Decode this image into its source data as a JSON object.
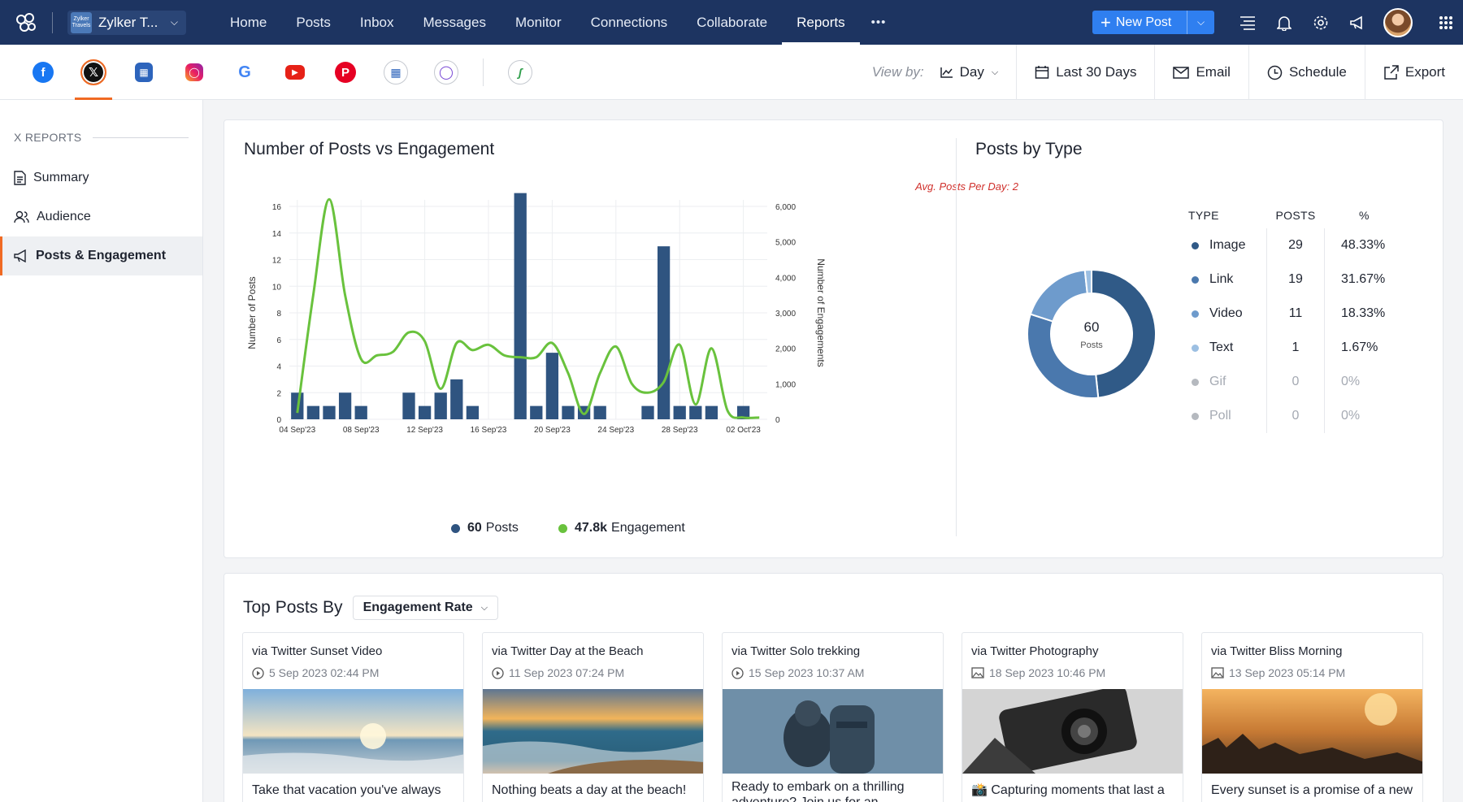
{
  "nav": {
    "brand": "Zylker T...",
    "brand_logo_text": "Zylker Travels",
    "links": [
      "Home",
      "Posts",
      "Inbox",
      "Messages",
      "Monitor",
      "Connections",
      "Collaborate",
      "Reports"
    ],
    "more": "•••",
    "new_post": "New Post"
  },
  "toolbar": {
    "view_by": "View by:",
    "day": "Day",
    "range": "Last 30 Days",
    "email": "Email",
    "schedule": "Schedule",
    "export": "Export"
  },
  "sidebar": {
    "heading": "X REPORTS",
    "items": [
      "Summary",
      "Audience",
      "Posts & Engagement"
    ]
  },
  "engagement_card": {
    "title": "Number of Posts vs Engagement",
    "avg": "Avg. Posts Per Day: 2",
    "legend_posts_value": "60",
    "legend_posts_label": "Posts",
    "legend_eng_value": "47.8k",
    "legend_eng_label": "Engagement"
  },
  "type_card": {
    "title": "Posts by Type",
    "center_value": "60",
    "center_label": "Posts",
    "headers": [
      "TYPE",
      "POSTS",
      "%"
    ],
    "rows": [
      {
        "type": "Image",
        "posts": "29",
        "pct": "48.33%",
        "color": "#305a87"
      },
      {
        "type": "Link",
        "posts": "19",
        "pct": "31.67%",
        "color": "#4a78ad"
      },
      {
        "type": "Video",
        "posts": "11",
        "pct": "18.33%",
        "color": "#6e9bcc"
      },
      {
        "type": "Text",
        "posts": "1",
        "pct": "1.67%",
        "color": "#9cbfe2"
      },
      {
        "type": "Gif",
        "posts": "0",
        "pct": "0%",
        "color": "#b5b9bf"
      },
      {
        "type": "Poll",
        "posts": "0",
        "pct": "0%",
        "color": "#b5b9bf"
      }
    ]
  },
  "top_posts": {
    "title": "Top Posts By",
    "sort": "Engagement Rate",
    "posts": [
      {
        "via": "via Twitter Sunset Video",
        "date": "5 Sep 2023 02:44 PM",
        "text": "Take that vacation you've always",
        "kind": "video"
      },
      {
        "via": "via Twitter Day at the Beach",
        "date": "11 Sep 2023 07:24 PM",
        "text": "Nothing beats a day at the beach!",
        "kind": "video"
      },
      {
        "via": "via Twitter Solo trekking",
        "date": "15 Sep 2023 10:37 AM",
        "text": "Ready to embark on a thrilling adventure? Join us for an",
        "kind": "video"
      },
      {
        "via": "via Twitter Photography",
        "date": "18 Sep 2023 10:46 PM",
        "text": "📸 Capturing moments that last a",
        "kind": "image"
      },
      {
        "via": "via Twitter Bliss Morning",
        "date": "13 Sep 2023 05:14 PM",
        "text": "Every sunset is a promise of a new",
        "kind": "image"
      }
    ]
  },
  "chart_data": {
    "type": "bar",
    "categories": [
      "04 Sep'23",
      "05 Sep'23",
      "06 Sep'23",
      "07 Sep'23",
      "08 Sep'23",
      "09 Sep'23",
      "10 Sep'23",
      "11 Sep'23",
      "12 Sep'23",
      "13 Sep'23",
      "14 Sep'23",
      "15 Sep'23",
      "16 Sep'23",
      "17 Sep'23",
      "18 Sep'23",
      "19 Sep'23",
      "20 Sep'23",
      "21 Sep'23",
      "22 Sep'23",
      "23 Sep'23",
      "24 Sep'23",
      "25 Sep'23",
      "26 Sep'23",
      "27 Sep'23",
      "28 Sep'23",
      "29 Sep'23",
      "30 Sep'23",
      "01 Oct'23",
      "02 Oct'23",
      "03 Oct'23"
    ],
    "x_tick_labels": [
      "04 Sep'23",
      "08 Sep'23",
      "12 Sep'23",
      "16 Sep'23",
      "20 Sep'23",
      "24 Sep'23",
      "28 Sep'23",
      "02 Oct'23"
    ],
    "series": [
      {
        "name": "Posts",
        "type": "bar",
        "axis": "left",
        "color": "#2f5480",
        "values": [
          2,
          1,
          1,
          2,
          1,
          0,
          0,
          2,
          1,
          2,
          3,
          1,
          0,
          0,
          17,
          1,
          5,
          1,
          1,
          1,
          0,
          0,
          1,
          13,
          1,
          1,
          1,
          0,
          1,
          0
        ]
      },
      {
        "name": "Engagement",
        "type": "line",
        "axis": "right",
        "color": "#69c23d",
        "values": [
          180,
          3500,
          6200,
          3500,
          1700,
          1800,
          1900,
          2450,
          2200,
          860,
          2150,
          1950,
          2100,
          1800,
          1750,
          1750,
          2150,
          1300,
          150,
          1300,
          2050,
          1000,
          750,
          1050,
          2100,
          420,
          2000,
          250,
          50,
          50
        ]
      }
    ],
    "ylabel": "Number of Posts",
    "ylabel_right": "Number of Engagements",
    "ylim": [
      0,
      16
    ],
    "y_ticks": [
      0,
      2,
      4,
      6,
      8,
      10,
      12,
      14,
      16
    ],
    "ylim_right": [
      0,
      6000
    ],
    "y_ticks_right": [
      "0",
      "1,000",
      "2,000",
      "3,000",
      "4,000",
      "5,000",
      "6,000"
    ],
    "grid": true
  },
  "donut_data": {
    "type": "pie",
    "categories": [
      "Image",
      "Link",
      "Video",
      "Text"
    ],
    "values": [
      29,
      19,
      11,
      1
    ],
    "colors": [
      "#305a87",
      "#4a78ad",
      "#6e9bcc",
      "#9cbfe2"
    ]
  }
}
